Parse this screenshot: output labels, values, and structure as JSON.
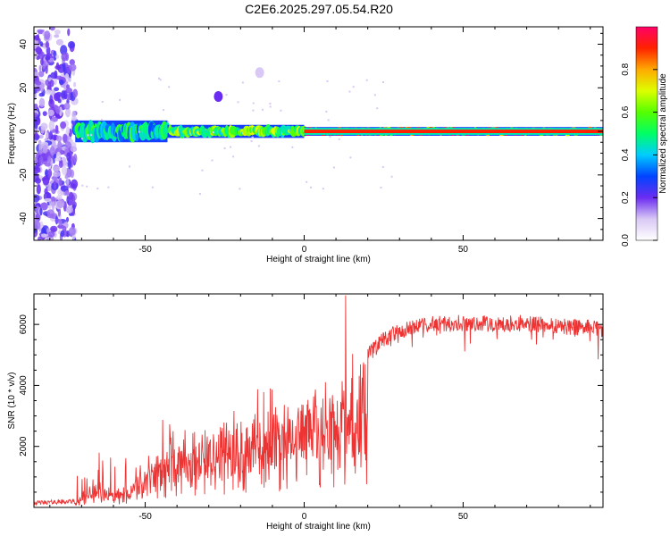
{
  "page": {
    "title": "C2E6.2025.297.05.54.R20"
  },
  "chart_data": [
    {
      "type": "heatmap",
      "xlabel": "Height of straight line (km)",
      "ylabel": "Frequency (Hz)",
      "xlim": [
        -85,
        94
      ],
      "ylim": [
        -50,
        48
      ],
      "xticks": [
        -50,
        0,
        50
      ],
      "yticks": [
        -40,
        -20,
        0,
        20,
        40
      ],
      "colorbar": {
        "label": "Normalized spectral amplitude",
        "range": [
          0,
          1
        ],
        "ticks": [
          0.0,
          0.2,
          0.4,
          0.6,
          0.8
        ]
      },
      "features": [
        {
          "name": "noise-region",
          "x_range": [
            -85,
            -72
          ],
          "f_range": [
            -50,
            48
          ],
          "amplitude": 0.15
        },
        {
          "name": "broadened-trace",
          "x_range": [
            -72,
            -43
          ],
          "f_center": 0,
          "f_halfwidth": 5,
          "amplitude": 0.55
        },
        {
          "name": "mixed-trace",
          "x_range": [
            -43,
            0
          ],
          "f_center": 0,
          "f_halfwidth": 3,
          "amplitude": 0.7
        },
        {
          "name": "narrow-carrier",
          "x_range": [
            0,
            94
          ],
          "f_center": 0,
          "f_halfwidth": 2,
          "amplitude": 0.95
        },
        {
          "name": "blob",
          "x": -27,
          "f": 16,
          "amplitude": 0.2
        },
        {
          "name": "blob",
          "x": -14,
          "f": 27,
          "amplitude": 0.1
        }
      ]
    },
    {
      "type": "line",
      "xlabel": "Height of straight line (km)",
      "ylabel": "SNR (10 * v/v)",
      "xlim": [
        -85,
        94
      ],
      "ylim": [
        0,
        7000
      ],
      "xticks": [
        -50,
        0,
        50
      ],
      "yticks": [
        2000,
        4000,
        6000
      ],
      "series": [
        {
          "name": "SNR",
          "color": "#ee3333",
          "envelope_x": [
            -85,
            -72,
            -68,
            -65,
            -60,
            -55,
            -50,
            -45,
            -40,
            -35,
            -30,
            -25,
            -20,
            -15,
            -10,
            -5,
            0,
            5,
            10,
            13,
            15,
            20,
            25,
            30,
            40,
            50,
            60,
            70,
            80,
            94
          ],
          "envelope_y": [
            150,
            200,
            750,
            950,
            600,
            750,
            1500,
            1900,
            2200,
            2450,
            2600,
            2800,
            2900,
            3100,
            3300,
            3500,
            3800,
            4000,
            4200,
            4600,
            4400,
            5000,
            5500,
            5800,
            6000,
            6050,
            6000,
            6050,
            5950,
            5850
          ],
          "peak": {
            "x": 13,
            "y": 6950
          }
        }
      ]
    }
  ]
}
